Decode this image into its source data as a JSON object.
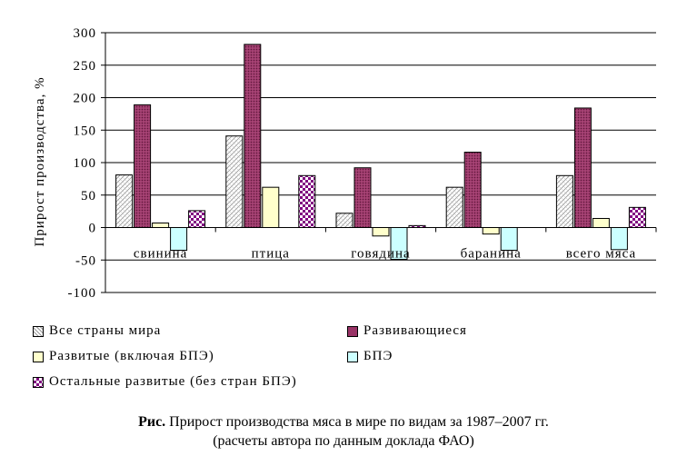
{
  "chart_data": {
    "type": "bar",
    "title": "",
    "xlabel": "",
    "ylabel": "Прирост производства, %",
    "ylim": [
      -100,
      300
    ],
    "yticks": [
      -100,
      -50,
      0,
      50,
      100,
      150,
      200,
      250,
      300
    ],
    "grid": true,
    "legend_position": "bottom",
    "categories": [
      "свинина",
      "птица",
      "говядина",
      "баранина",
      "всего мяса"
    ],
    "series": [
      {
        "name": "Все страны мира",
        "values": [
          81,
          141,
          22,
          62,
          80
        ],
        "color": "#ffffff",
        "pattern": "diag-hatch"
      },
      {
        "name": "Развивающиеся",
        "values": [
          189,
          282,
          92,
          116,
          184
        ],
        "color": "#993366",
        "pattern": "dots"
      },
      {
        "name": "Развитые (включая БПЭ)",
        "values": [
          7,
          62,
          -13,
          -10,
          14
        ],
        "color": "#ffffcc",
        "pattern": "solid"
      },
      {
        "name": "БПЭ",
        "values": [
          -35,
          0,
          -49,
          -35,
          -34
        ],
        "color": "#ccffff",
        "pattern": "solid"
      },
      {
        "name": "Остальные развитые (без стран БПЭ)",
        "values": [
          26,
          80,
          3,
          0,
          31
        ],
        "color": "#800080",
        "pattern": "checker"
      }
    ]
  },
  "caption": {
    "bold_part": "Рис.",
    "line1_rest": " Прирост производства мяса в мире по видам за 1987–2007 гг.",
    "line2": "(расчеты автора по данным доклада ФАО)"
  }
}
